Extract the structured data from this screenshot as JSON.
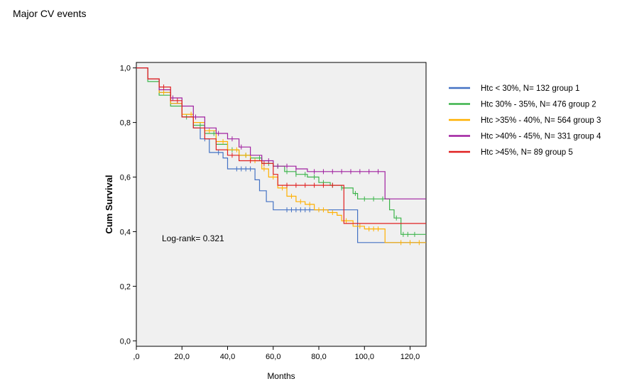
{
  "page": {
    "title": "Major CV events"
  },
  "colors": {
    "plot_bg": "#f0f0f0",
    "axis": "#000000"
  },
  "chart_data": {
    "type": "line",
    "subtype": "kaplan-meier step curves with censoring marks",
    "title": "Major CV events",
    "xlabel": "Months",
    "ylabel": "Cum Survival",
    "xlim": [
      0,
      127
    ],
    "ylim": [
      -0.02,
      1.02
    ],
    "xticks": [
      0,
      20,
      40,
      60,
      80,
      100,
      120
    ],
    "xtick_labels": [
      ",0",
      "20,0",
      "40,0",
      "60,0",
      "80,0",
      "100,0",
      "120,0"
    ],
    "yticks": [
      0,
      0.2,
      0.4,
      0.6,
      0.8,
      1.0
    ],
    "ytick_labels": [
      "0,0",
      "0,2",
      "0,4",
      "0,6",
      "0,8",
      "1,0"
    ],
    "grid": false,
    "legend_position": "right",
    "annotation": "Log-rank= 0.321",
    "series": [
      {
        "name": "Htc < 30%, N= 132 group 1",
        "color": "#4472c4",
        "steps": [
          [
            0,
            1.0
          ],
          [
            5,
            0.96
          ],
          [
            10,
            0.91
          ],
          [
            15,
            0.87
          ],
          [
            20,
            0.82
          ],
          [
            25,
            0.78
          ],
          [
            28,
            0.74
          ],
          [
            32,
            0.69
          ],
          [
            38,
            0.67
          ],
          [
            40,
            0.63
          ],
          [
            50,
            0.63
          ],
          [
            52,
            0.59
          ],
          [
            54,
            0.55
          ],
          [
            57,
            0.51
          ],
          [
            60,
            0.48
          ],
          [
            96,
            0.48
          ],
          [
            97,
            0.36
          ],
          [
            127,
            0.36
          ]
        ],
        "censor_times": [
          30,
          36,
          44,
          46,
          48,
          50,
          66,
          68,
          70,
          72,
          74,
          76
        ]
      },
      {
        "name": "Htc 30% - 35%, N= 476 group 2",
        "color": "#3cb44b",
        "steps": [
          [
            0,
            1.0
          ],
          [
            5,
            0.95
          ],
          [
            10,
            0.9
          ],
          [
            15,
            0.86
          ],
          [
            20,
            0.82
          ],
          [
            25,
            0.79
          ],
          [
            30,
            0.76
          ],
          [
            35,
            0.72
          ],
          [
            40,
            0.7
          ],
          [
            45,
            0.68
          ],
          [
            50,
            0.67
          ],
          [
            55,
            0.65
          ],
          [
            60,
            0.64
          ],
          [
            65,
            0.62
          ],
          [
            70,
            0.61
          ],
          [
            75,
            0.6
          ],
          [
            80,
            0.58
          ],
          [
            85,
            0.57
          ],
          [
            90,
            0.56
          ],
          [
            95,
            0.54
          ],
          [
            97,
            0.52
          ],
          [
            110,
            0.52
          ],
          [
            111,
            0.48
          ],
          [
            113,
            0.45
          ],
          [
            116,
            0.39
          ],
          [
            127,
            0.39
          ]
        ],
        "censor_times": [
          22,
          28,
          34,
          42,
          48,
          54,
          58,
          62,
          66,
          70,
          74,
          78,
          82,
          86,
          90,
          96,
          100,
          104,
          108,
          114,
          117,
          119,
          122
        ]
      },
      {
        "name": "Htc >35% - 40%, N= 564 group 3",
        "color": "#ffb000",
        "steps": [
          [
            0,
            1.0
          ],
          [
            5,
            0.96
          ],
          [
            10,
            0.91
          ],
          [
            15,
            0.87
          ],
          [
            20,
            0.83
          ],
          [
            25,
            0.8
          ],
          [
            30,
            0.77
          ],
          [
            35,
            0.73
          ],
          [
            40,
            0.7
          ],
          [
            45,
            0.68
          ],
          [
            50,
            0.66
          ],
          [
            55,
            0.63
          ],
          [
            58,
            0.6
          ],
          [
            62,
            0.56
          ],
          [
            66,
            0.53
          ],
          [
            70,
            0.51
          ],
          [
            74,
            0.5
          ],
          [
            78,
            0.48
          ],
          [
            84,
            0.47
          ],
          [
            88,
            0.46
          ],
          [
            90,
            0.44
          ],
          [
            95,
            0.42
          ],
          [
            100,
            0.41
          ],
          [
            108,
            0.41
          ],
          [
            109,
            0.36
          ],
          [
            127,
            0.36
          ]
        ],
        "censor_times": [
          12,
          24,
          32,
          38,
          44,
          48,
          52,
          56,
          60,
          64,
          68,
          72,
          76,
          80,
          82,
          86,
          92,
          98,
          102,
          104,
          106,
          116,
          120,
          124
        ]
      },
      {
        "name": "Htc >40% - 45%, N= 331 group 4",
        "color": "#a020a0",
        "steps": [
          [
            0,
            1.0
          ],
          [
            5,
            0.96
          ],
          [
            10,
            0.92
          ],
          [
            15,
            0.89
          ],
          [
            20,
            0.86
          ],
          [
            25,
            0.82
          ],
          [
            30,
            0.78
          ],
          [
            35,
            0.76
          ],
          [
            40,
            0.74
          ],
          [
            45,
            0.71
          ],
          [
            50,
            0.68
          ],
          [
            55,
            0.66
          ],
          [
            60,
            0.64
          ],
          [
            65,
            0.64
          ],
          [
            70,
            0.63
          ],
          [
            75,
            0.62
          ],
          [
            108,
            0.62
          ],
          [
            109,
            0.52
          ],
          [
            127,
            0.52
          ]
        ],
        "censor_times": [
          16,
          26,
          30,
          36,
          42,
          46,
          58,
          62,
          66,
          70,
          78,
          82,
          86,
          90,
          94,
          98,
          102,
          106
        ]
      },
      {
        "name": "Htc >45%, N= 89 group 5",
        "color": "#e02020",
        "steps": [
          [
            0,
            1.0
          ],
          [
            5,
            0.96
          ],
          [
            10,
            0.93
          ],
          [
            15,
            0.88
          ],
          [
            20,
            0.82
          ],
          [
            25,
            0.78
          ],
          [
            30,
            0.74
          ],
          [
            35,
            0.7
          ],
          [
            40,
            0.68
          ],
          [
            45,
            0.66
          ],
          [
            55,
            0.65
          ],
          [
            60,
            0.61
          ],
          [
            62,
            0.57
          ],
          [
            90,
            0.57
          ],
          [
            91,
            0.43
          ],
          [
            127,
            0.43
          ]
        ],
        "censor_times": [
          12,
          18,
          42,
          50,
          56,
          66,
          70,
          74,
          78,
          82,
          86
        ]
      }
    ]
  }
}
